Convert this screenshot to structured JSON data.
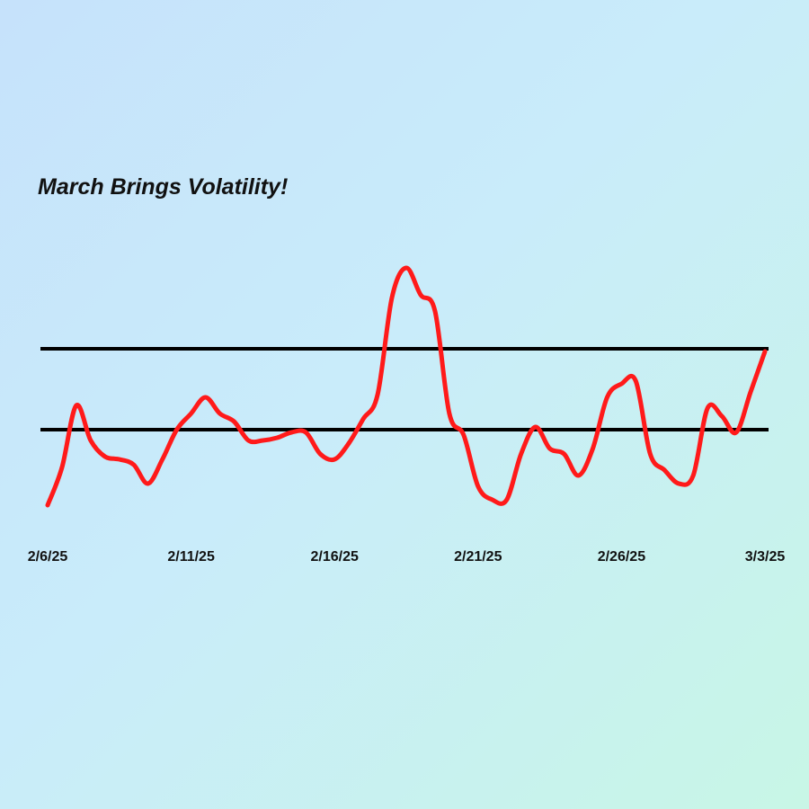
{
  "chart_data": {
    "type": "line",
    "title": "March Brings Volatility!",
    "categories": [
      "2/6/25",
      null,
      null,
      null,
      null,
      null,
      null,
      null,
      null,
      null,
      "2/11/25",
      null,
      null,
      null,
      null,
      null,
      null,
      null,
      null,
      null,
      "2/16/25",
      null,
      null,
      null,
      null,
      null,
      null,
      null,
      null,
      null,
      "2/21/25",
      null,
      null,
      null,
      null,
      null,
      null,
      null,
      null,
      null,
      "2/26/25",
      null,
      null,
      null,
      null,
      null,
      null,
      null,
      null,
      null,
      "3/3/25"
    ],
    "series": [
      {
        "color": "#ff1a1a",
        "values": [
          6,
          20,
          43,
          30,
          24,
          23,
          21,
          14,
          23,
          34,
          40,
          46,
          40,
          37,
          30,
          30,
          31,
          33,
          33,
          25,
          23,
          29,
          38,
          47,
          83,
          94,
          84,
          78,
          40,
          32,
          13,
          8,
          8,
          25,
          35,
          27,
          25,
          17,
          27,
          46,
          51,
          52,
          25,
          19,
          14,
          17,
          42,
          39,
          33,
          48,
          63
        ]
      }
    ],
    "hlines": [
      64,
      34
    ],
    "hline_color": "#000000",
    "ylim": [
      0,
      100
    ]
  }
}
